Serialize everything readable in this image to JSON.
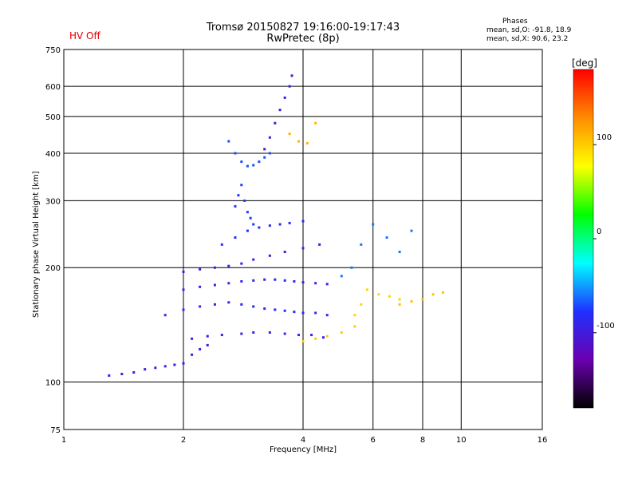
{
  "header": {
    "title_line1": "Tromsø 20150827 19:16:00-19:17:43",
    "title_line2": "RwPretec (8p)",
    "status_label": "HV Off",
    "phase_heading": "Phases",
    "phase_o": "mean, sd,O: -91.8, 18.9",
    "phase_x": "mean, sd,X:  90.6, 23.2"
  },
  "colors": {
    "status": "#e00000",
    "grid": "#000000",
    "scale": [
      "#000000",
      "#6a00b0",
      "#2030ff",
      "#00ffff",
      "#00ff00",
      "#ffff00",
      "#ff8c00",
      "#ff0000"
    ]
  },
  "chart_data": {
    "type": "scatter",
    "title": "",
    "xlabel": "Frequency [MHz]",
    "ylabel": "Stationary phase Virtual Height [km]",
    "xscale": "log",
    "yscale": "log",
    "xlim": [
      1,
      16
    ],
    "ylim": [
      75,
      750
    ],
    "xticks": [
      1,
      2,
      4,
      6,
      8,
      10,
      16
    ],
    "xtick_labels": [
      "1",
      "2",
      "4",
      "6",
      "8",
      "10",
      "16"
    ],
    "xgrid": [
      2,
      4,
      6,
      8,
      10
    ],
    "yticks": [
      75,
      100,
      200,
      300,
      400,
      500,
      600,
      750
    ],
    "ytick_labels": [
      "75",
      "100",
      "200",
      "300",
      "400",
      "500",
      "600",
      "750"
    ],
    "ygrid": [
      100,
      200,
      300,
      400,
      500,
      600
    ],
    "grid": true,
    "colorbar": {
      "label": "[deg]",
      "range": [
        -180,
        180
      ],
      "ticks": [
        -100,
        0,
        100
      ],
      "tick_labels": [
        "-100",
        "0",
        "100"
      ]
    },
    "traces": [
      {
        "name": "",
        "phase": -95,
        "x": [
          1.3,
          1.4,
          1.5,
          1.6,
          1.7,
          1.8,
          1.9,
          2.0,
          2.1,
          2.2,
          2.3
        ],
        "y": [
          104,
          105,
          106,
          108,
          109,
          110,
          111,
          112,
          118,
          122,
          125
        ]
      },
      {
        "name": "",
        "phase": -90,
        "x": [
          2.1,
          2.3,
          2.5,
          2.8,
          3.0,
          3.3,
          3.6,
          3.9,
          4.2,
          4.5
        ],
        "y": [
          130,
          132,
          133,
          134,
          135,
          135,
          134,
          133,
          133,
          131
        ]
      },
      {
        "name": "",
        "phase": -85,
        "x": [
          1.8,
          2.0,
          2.2,
          2.4,
          2.6,
          2.8,
          3.0,
          3.2,
          3.4,
          3.6,
          3.8,
          4.0,
          4.3,
          4.6
        ],
        "y": [
          150,
          155,
          158,
          160,
          162,
          160,
          158,
          156,
          155,
          154,
          153,
          152,
          152,
          150
        ]
      },
      {
        "name": "",
        "phase": -88,
        "x": [
          2.0,
          2.2,
          2.4,
          2.6,
          2.8,
          3.0,
          3.2,
          3.4,
          3.6,
          3.8,
          4.0,
          4.3,
          4.6
        ],
        "y": [
          175,
          178,
          180,
          182,
          184,
          185,
          186,
          186,
          185,
          184,
          183,
          182,
          181
        ]
      },
      {
        "name": "",
        "phase": -92,
        "x": [
          2.0,
          2.2,
          2.4,
          2.6,
          2.8,
          3.0,
          3.3,
          3.6,
          4.0,
          4.4
        ],
        "y": [
          195,
          198,
          200,
          202,
          205,
          210,
          215,
          220,
          225,
          230
        ]
      },
      {
        "name": "",
        "phase": -80,
        "x": [
          2.5,
          2.7,
          2.9,
          3.1,
          3.3,
          3.5,
          3.7,
          4.0
        ],
        "y": [
          230,
          240,
          250,
          255,
          258,
          260,
          262,
          265
        ]
      },
      {
        "name": "",
        "phase": -75,
        "x": [
          2.7,
          2.75,
          2.8,
          2.85,
          2.9,
          2.95,
          3.0
        ],
        "y": [
          290,
          310,
          330,
          300,
          280,
          270,
          260
        ]
      },
      {
        "name": "",
        "phase": -70,
        "x": [
          2.6,
          2.7,
          2.8,
          2.9,
          3.0,
          3.1,
          3.2,
          3.3
        ],
        "y": [
          430,
          400,
          380,
          370,
          372,
          380,
          390,
          400
        ]
      },
      {
        "name": "",
        "phase": -100,
        "x": [
          3.2,
          3.3,
          3.4,
          3.5,
          3.6,
          3.7,
          3.75
        ],
        "y": [
          410,
          440,
          480,
          520,
          560,
          600,
          640
        ]
      },
      {
        "name": "",
        "phase": 100,
        "x": [
          4.0,
          4.3,
          4.6,
          5.0,
          5.4
        ],
        "y": [
          128,
          130,
          132,
          135,
          140
        ]
      },
      {
        "name": "",
        "phase": 95,
        "x": [
          5.4,
          5.6,
          5.8,
          6.2,
          6.6,
          7.0
        ],
        "y": [
          150,
          160,
          175,
          170,
          168,
          165
        ]
      },
      {
        "name": "",
        "phase": 105,
        "x": [
          7.0,
          7.5,
          8.0,
          8.5,
          9.0
        ],
        "y": [
          160,
          163,
          165,
          170,
          172
        ]
      },
      {
        "name": "",
        "phase": 110,
        "x": [
          3.7,
          3.9,
          4.1,
          4.3
        ],
        "y": [
          450,
          430,
          425,
          480
        ]
      },
      {
        "name": "",
        "phase": -60,
        "x": [
          5.0,
          5.3,
          5.6,
          6.0,
          6.5,
          7.0,
          7.5
        ],
        "y": [
          190,
          200,
          230,
          260,
          240,
          220,
          250
        ]
      }
    ]
  }
}
